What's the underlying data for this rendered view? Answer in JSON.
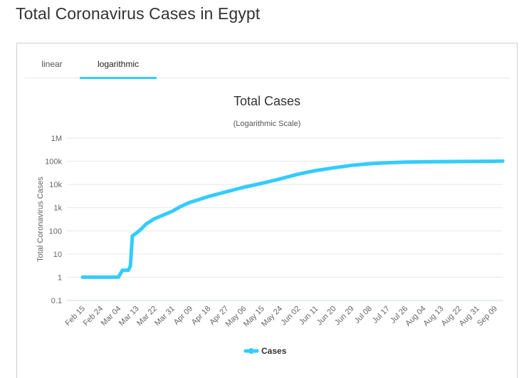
{
  "page": {
    "title": "Total Coronavirus Cases in Egypt"
  },
  "tabs": [
    {
      "label": "linear",
      "active": false
    },
    {
      "label": "logarithmic",
      "active": true
    }
  ],
  "colors": {
    "series": "#33ccff",
    "grid": "#e6e6e6",
    "tab_active": "#33ccff"
  },
  "chart_data": {
    "type": "line",
    "title": "Total Cases",
    "subtitle": "(Logarithmic Scale)",
    "ylabel": "Total Coronavirus Cases",
    "xlabel": "",
    "yscale": "log",
    "ylim": [
      0.1,
      1000000
    ],
    "yticks": [
      {
        "value": 0.1,
        "label": "0.1"
      },
      {
        "value": 1,
        "label": "1"
      },
      {
        "value": 10,
        "label": "10"
      },
      {
        "value": 100,
        "label": "100"
      },
      {
        "value": 1000,
        "label": "1k"
      },
      {
        "value": 10000,
        "label": "10k"
      },
      {
        "value": 100000,
        "label": "100k"
      },
      {
        "value": 1000000,
        "label": "1M"
      }
    ],
    "xticks": [
      "Feb 15",
      "Feb 24",
      "Mar 04",
      "Mar 13",
      "Mar 22",
      "Mar 31",
      "Apr 09",
      "Apr 18",
      "Apr 27",
      "May 06",
      "May 15",
      "May 24",
      "Jun 02",
      "Jun 11",
      "Jun 20",
      "Jun 29",
      "Jul 08",
      "Jul 17",
      "Jul 26",
      "Aug 04",
      "Aug 13",
      "Aug 22",
      "Aug 31",
      "Sep 09"
    ],
    "grid": true,
    "legend_position": "bottom-center",
    "series": [
      {
        "name": "Cases",
        "points": [
          [
            "Feb 15",
            1
          ],
          [
            "Feb 24",
            1
          ],
          [
            "Mar 04",
            1
          ],
          [
            "Mar 06",
            2
          ],
          [
            "Mar 08",
            2
          ],
          [
            "Mar 09",
            2
          ],
          [
            "Mar 10",
            3
          ],
          [
            "Mar 11",
            60
          ],
          [
            "Mar 13",
            80
          ],
          [
            "Mar 15",
            110
          ],
          [
            "Mar 18",
            200
          ],
          [
            "Mar 22",
            330
          ],
          [
            "Mar 27",
            500
          ],
          [
            "Mar 31",
            700
          ],
          [
            "Apr 04",
            1100
          ],
          [
            "Apr 09",
            1700
          ],
          [
            "Apr 18",
            3000
          ],
          [
            "Apr 27",
            4800
          ],
          [
            "May 06",
            7600
          ],
          [
            "May 15",
            11200
          ],
          [
            "May 24",
            17300
          ],
          [
            "Jun 02",
            27500
          ],
          [
            "Jun 11",
            39700
          ],
          [
            "Jun 20",
            52200
          ],
          [
            "Jun 29",
            66800
          ],
          [
            "Jul 08",
            78300
          ],
          [
            "Jul 17",
            86500
          ],
          [
            "Jul 26",
            91600
          ],
          [
            "Aug 04",
            94800
          ],
          [
            "Aug 13",
            96200
          ],
          [
            "Aug 22",
            97800
          ],
          [
            "Aug 31",
            99000
          ],
          [
            "Sep 09",
            100800
          ],
          [
            "Sep 13",
            101800
          ]
        ]
      }
    ]
  }
}
